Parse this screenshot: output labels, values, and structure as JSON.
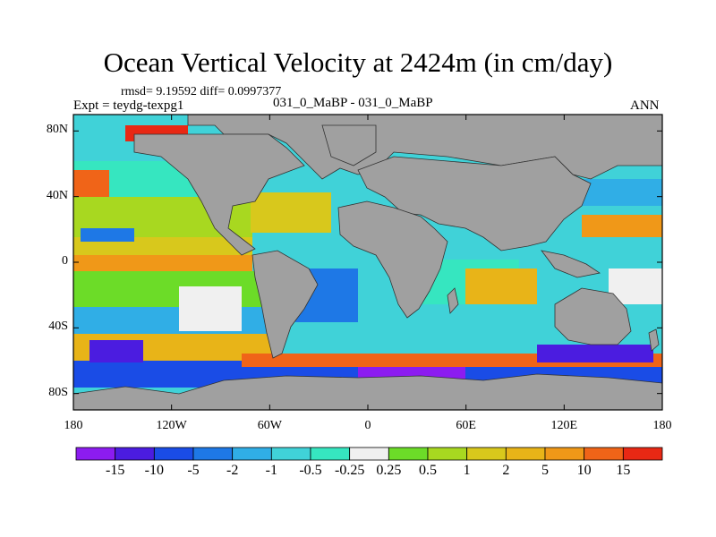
{
  "title": "Ocean Vertical Velocity at 2424m (in cm/day)",
  "stats": "rmsd= 9.19592 diff= 0.0997377",
  "experiment": "Expt = teydg-texpg1",
  "comparison": "031_0_MaBP - 031_0_MaBP",
  "season": "ANN",
  "map": {
    "lon_range": [
      -180,
      180
    ],
    "lat_range": [
      -90,
      90
    ],
    "land_color": "#a0a0a0",
    "x_ticks": [
      {
        "lon": -180,
        "label": "180"
      },
      {
        "lon": -120,
        "label": "120W"
      },
      {
        "lon": -60,
        "label": "60W"
      },
      {
        "lon": 0,
        "label": "0"
      },
      {
        "lon": 60,
        "label": "60E"
      },
      {
        "lon": 120,
        "label": "120E"
      },
      {
        "lon": 180,
        "label": "180"
      }
    ],
    "y_ticks": [
      {
        "lat": 80,
        "label": "80N"
      },
      {
        "lat": 40,
        "label": "40N"
      },
      {
        "lat": 0,
        "label": "0"
      },
      {
        "lat": -40,
        "label": "40S"
      },
      {
        "lat": -80,
        "label": "80S"
      }
    ]
  },
  "colorbar": {
    "colors": [
      "#8c1cf0",
      "#4b1ce0",
      "#1a4ce6",
      "#1e78e6",
      "#30aee6",
      "#40d2d8",
      "#36e6c0",
      "#f0f0f0",
      "#6cdc28",
      "#a8d820",
      "#d8c81c",
      "#e8b418",
      "#f09818",
      "#f06418",
      "#e82814"
    ],
    "labels": [
      "-15",
      "-10",
      "-5",
      "-2",
      "-1",
      "-0.5",
      "-0.25",
      "0.25",
      "0.5",
      "1",
      "2",
      "5",
      "10",
      "15"
    ]
  }
}
